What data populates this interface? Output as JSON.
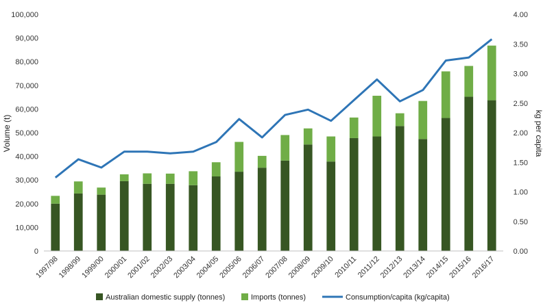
{
  "chart_data": {
    "type": "bar",
    "stacked": true,
    "categories": [
      "1997/98",
      "1998/99",
      "1999/00",
      "2000/01",
      "2001/02",
      "2002/03",
      "2003/04",
      "2004/05",
      "2005/06",
      "2006/07",
      "2007/08",
      "2008/09",
      "2009/10",
      "2010/11",
      "2011/12",
      "2012/13",
      "2013/14",
      "2014/15",
      "2015/16",
      "2016/17"
    ],
    "series": [
      {
        "name": "Australian domestic supply (tonnes)",
        "kind": "bar",
        "axis": "left",
        "color": "#375623",
        "values": [
          20000,
          24300,
          23800,
          29500,
          28400,
          28400,
          27800,
          31500,
          33500,
          35200,
          38200,
          45000,
          37800,
          47700,
          48400,
          52800,
          47300,
          56200,
          65200,
          63700
        ]
      },
      {
        "name": "Imports (tonnes)",
        "kind": "bar",
        "axis": "left",
        "color": "#70AD47",
        "values": [
          3300,
          5100,
          3000,
          2900,
          4400,
          4300,
          5900,
          6000,
          12600,
          5000,
          10800,
          6800,
          10600,
          8700,
          17200,
          5400,
          16100,
          19700,
          13000,
          23100
        ]
      },
      {
        "name": "Consumption/capita (kg/capita)",
        "kind": "line",
        "axis": "right",
        "color": "#2E75B6",
        "values": [
          1.24,
          1.55,
          1.41,
          1.68,
          1.68,
          1.65,
          1.68,
          1.84,
          2.23,
          1.92,
          2.3,
          2.39,
          2.2,
          2.55,
          2.9,
          2.53,
          2.72,
          3.22,
          3.27,
          3.58
        ]
      }
    ],
    "ylabel": "Volume (t)",
    "y2label": "kg per capita",
    "ylim": [
      0,
      100000
    ],
    "y2lim": [
      0,
      4
    ],
    "yticks": [
      "0",
      "10,000",
      "20,000",
      "30,000",
      "40,000",
      "50,000",
      "60,000",
      "70,000",
      "80,000",
      "90,000",
      "100,000"
    ],
    "y2ticks": [
      "0.00",
      "0.50",
      "1.00",
      "1.50",
      "2.00",
      "2.50",
      "3.00",
      "3.50",
      "4.00"
    ],
    "grid": false,
    "legend_position": "bottom"
  }
}
